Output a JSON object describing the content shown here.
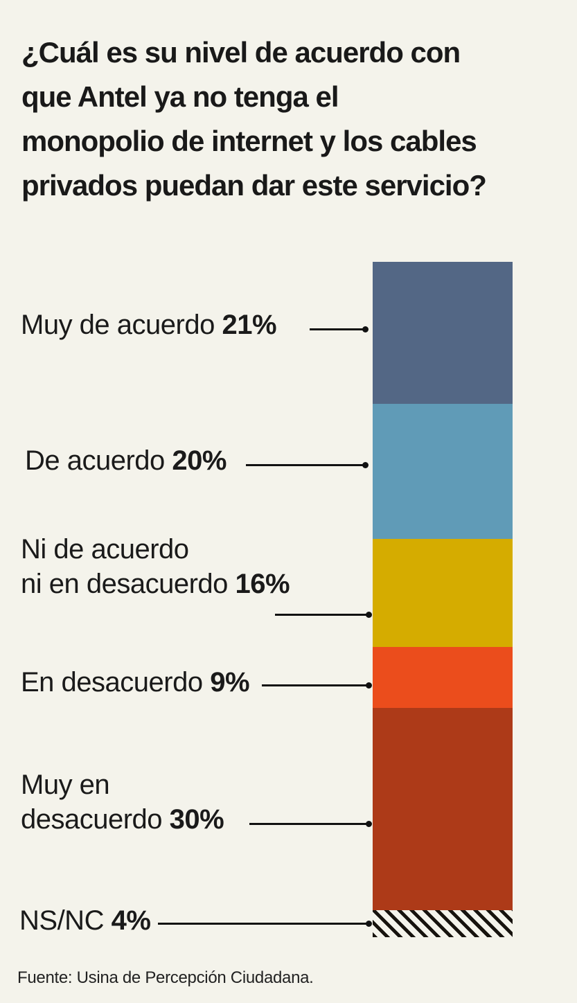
{
  "background_color": "#f4f3eb",
  "text_color": "#1a1a1a",
  "title": {
    "lines": [
      "¿Cuál es su nivel de acuerdo con",
      "que Antel ya no tenga el",
      "monopolio de internet y los cables",
      "privados puedan dar este servicio?"
    ]
  },
  "chart_data": {
    "type": "bar",
    "variant": "single-stacked-vertical-column",
    "title": "¿Cuál es su nivel de acuerdo con que Antel ya no tenga el monopolio de internet y los cables privados puedan dar este servicio?",
    "unit": "%",
    "total": 100,
    "categories": [
      "Muy de acuerdo",
      "De acuerdo",
      "Ni de acuerdo ni en desacuerdo",
      "En desacuerdo",
      "Muy en desacuerdo",
      "NS/NC"
    ],
    "values": [
      21,
      20,
      16,
      9,
      30,
      4
    ],
    "legend_position": "left-leader-lines",
    "segments": [
      {
        "label_lines": [
          "Muy de acuerdo"
        ],
        "value_label": "21%",
        "percent": 21,
        "color": "#536785",
        "hatch": false
      },
      {
        "label_lines": [
          "De acuerdo"
        ],
        "value_label": "20%",
        "percent": 20,
        "color": "#609bb7",
        "hatch": false
      },
      {
        "label_lines": [
          "Ni de acuerdo",
          "ni en desacuerdo"
        ],
        "value_label": "16%",
        "percent": 16,
        "color": "#d5ac00",
        "hatch": false
      },
      {
        "label_lines": [
          "En desacuerdo"
        ],
        "value_label": "9%",
        "percent": 9,
        "color": "#eb4d1c",
        "hatch": false
      },
      {
        "label_lines": [
          "Muy en",
          "desacuerdo"
        ],
        "value_label": "30%",
        "percent": 30,
        "color": "#ad3a18",
        "hatch": false
      },
      {
        "label_lines": [
          "NS/NC"
        ],
        "value_label": "4%",
        "percent": 4,
        "color": "black-diagonal-hatch-on-cream",
        "hatch": true
      }
    ]
  },
  "footer": {
    "source": "Fuente: Usina de Percepción Ciudadana."
  }
}
